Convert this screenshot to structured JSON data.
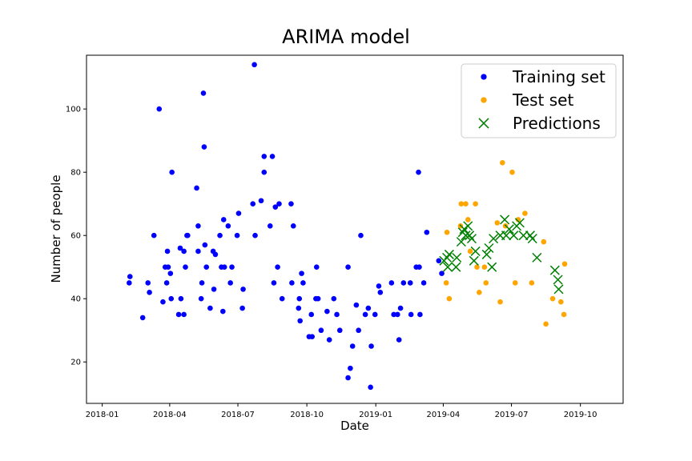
{
  "chart_data": {
    "type": "scatter",
    "title": "ARIMA model",
    "xlabel": "Date",
    "ylabel": "Number of people",
    "xlim": [
      "2017-12-11",
      "2019-11-27"
    ],
    "ylim": [
      6.9,
      117
    ],
    "x_ticks": [
      "2018-01-01",
      "2018-04-01",
      "2018-07-01",
      "2018-10-01",
      "2019-01-01",
      "2019-04-01",
      "2019-07-01",
      "2019-10-01"
    ],
    "x_tick_labels": [
      "2018-01",
      "2018-04",
      "2018-07",
      "2018-10",
      "2019-01",
      "2019-04",
      "2019-07",
      "2019-10"
    ],
    "y_ticks": [
      20,
      40,
      60,
      80,
      100
    ],
    "grid": false,
    "legend_position": "top-right",
    "series": [
      {
        "name": "Training set",
        "color": "#0000ff",
        "marker": "circle",
        "points": [
          [
            "2018-02-06",
            45
          ],
          [
            "2018-02-07",
            47
          ],
          [
            "2018-02-24",
            34
          ],
          [
            "2018-03-03",
            45
          ],
          [
            "2018-03-05",
            42
          ],
          [
            "2018-03-11",
            60
          ],
          [
            "2018-03-18",
            100
          ],
          [
            "2018-03-23",
            39
          ],
          [
            "2018-03-26",
            50
          ],
          [
            "2018-03-28",
            45
          ],
          [
            "2018-03-29",
            55
          ],
          [
            "2018-03-30",
            50
          ],
          [
            "2018-04-02",
            48
          ],
          [
            "2018-04-03",
            40
          ],
          [
            "2018-04-04",
            80
          ],
          [
            "2018-04-13",
            35
          ],
          [
            "2018-04-15",
            56
          ],
          [
            "2018-04-16",
            40
          ],
          [
            "2018-04-20",
            35
          ],
          [
            "2018-04-20",
            55
          ],
          [
            "2018-04-22",
            50
          ],
          [
            "2018-04-24",
            60
          ],
          [
            "2018-04-25",
            60
          ],
          [
            "2018-05-07",
            75
          ],
          [
            "2018-05-09",
            63
          ],
          [
            "2018-05-09",
            55
          ],
          [
            "2018-05-13",
            40
          ],
          [
            "2018-05-14",
            45
          ],
          [
            "2018-05-16",
            105
          ],
          [
            "2018-05-17",
            88
          ],
          [
            "2018-05-18",
            57
          ],
          [
            "2018-05-20",
            50
          ],
          [
            "2018-05-25",
            37
          ],
          [
            "2018-05-29",
            55
          ],
          [
            "2018-05-30",
            43
          ],
          [
            "2018-06-01",
            54
          ],
          [
            "2018-06-07",
            60
          ],
          [
            "2018-06-09",
            50
          ],
          [
            "2018-06-11",
            36
          ],
          [
            "2018-06-12",
            65
          ],
          [
            "2018-06-13",
            50
          ],
          [
            "2018-06-18",
            63
          ],
          [
            "2018-06-21",
            45
          ],
          [
            "2018-06-23",
            50
          ],
          [
            "2018-06-30",
            60
          ],
          [
            "2018-07-02",
            67
          ],
          [
            "2018-07-07",
            37
          ],
          [
            "2018-07-08",
            43
          ],
          [
            "2018-07-21",
            70
          ],
          [
            "2018-07-23",
            114
          ],
          [
            "2018-07-24",
            60
          ],
          [
            "2018-08-01",
            71
          ],
          [
            "2018-08-05",
            80
          ],
          [
            "2018-08-05",
            85
          ],
          [
            "2018-08-13",
            63
          ],
          [
            "2018-08-16",
            85
          ],
          [
            "2018-08-18",
            45
          ],
          [
            "2018-08-20",
            69
          ],
          [
            "2018-08-23",
            50
          ],
          [
            "2018-08-25",
            70
          ],
          [
            "2018-08-29",
            40
          ],
          [
            "2018-09-10",
            70
          ],
          [
            "2018-09-11",
            45
          ],
          [
            "2018-09-13",
            63
          ],
          [
            "2018-09-20",
            37
          ],
          [
            "2018-09-21",
            40
          ],
          [
            "2018-09-22",
            33
          ],
          [
            "2018-09-24",
            48
          ],
          [
            "2018-09-26",
            45
          ],
          [
            "2018-10-04",
            28
          ],
          [
            "2018-10-07",
            35
          ],
          [
            "2018-10-08",
            28
          ],
          [
            "2018-10-13",
            40
          ],
          [
            "2018-10-14",
            50
          ],
          [
            "2018-10-16",
            40
          ],
          [
            "2018-10-20",
            30
          ],
          [
            "2018-10-28",
            36
          ],
          [
            "2018-10-31",
            27
          ],
          [
            "2018-11-06",
            40
          ],
          [
            "2018-11-10",
            35
          ],
          [
            "2018-11-14",
            30
          ],
          [
            "2018-11-25",
            15
          ],
          [
            "2018-11-25",
            50
          ],
          [
            "2018-11-28",
            18
          ],
          [
            "2018-12-01",
            25
          ],
          [
            "2018-12-06",
            38
          ],
          [
            "2018-12-09",
            30
          ],
          [
            "2018-12-12",
            60
          ],
          [
            "2018-12-18",
            35
          ],
          [
            "2018-12-22",
            37
          ],
          [
            "2018-12-25",
            12
          ],
          [
            "2018-12-26",
            25
          ],
          [
            "2018-12-31",
            35
          ],
          [
            "2019-01-05",
            44
          ],
          [
            "2019-01-07",
            42
          ],
          [
            "2019-01-22",
            45
          ],
          [
            "2019-01-25",
            35
          ],
          [
            "2019-01-30",
            35
          ],
          [
            "2019-02-01",
            27
          ],
          [
            "2019-02-03",
            37
          ],
          [
            "2019-02-07",
            45
          ],
          [
            "2019-02-16",
            45
          ],
          [
            "2019-02-17",
            35
          ],
          [
            "2019-02-24",
            50
          ],
          [
            "2019-02-27",
            80
          ],
          [
            "2019-02-28",
            50
          ],
          [
            "2019-03-01",
            35
          ],
          [
            "2019-03-06",
            45
          ],
          [
            "2019-03-10",
            61
          ],
          [
            "2019-03-26",
            52
          ],
          [
            "2019-03-30",
            48
          ]
        ]
      },
      {
        "name": "Test set",
        "color": "#ffa500",
        "marker": "circle",
        "points": [
          [
            "2019-04-05",
            45
          ],
          [
            "2019-04-06",
            61
          ],
          [
            "2019-04-09",
            40
          ],
          [
            "2019-04-24",
            63
          ],
          [
            "2019-04-25",
            70
          ],
          [
            "2019-05-01",
            70
          ],
          [
            "2019-05-04",
            65
          ],
          [
            "2019-05-07",
            55
          ],
          [
            "2019-05-14",
            70
          ],
          [
            "2019-05-16",
            50
          ],
          [
            "2019-05-19",
            42
          ],
          [
            "2019-05-26",
            50
          ],
          [
            "2019-05-28",
            45
          ],
          [
            "2019-06-12",
            64
          ],
          [
            "2019-06-16",
            39
          ],
          [
            "2019-06-19",
            83
          ],
          [
            "2019-06-23",
            63
          ],
          [
            "2019-07-02",
            80
          ],
          [
            "2019-07-06",
            45
          ],
          [
            "2019-07-10",
            65
          ],
          [
            "2019-07-19",
            67
          ],
          [
            "2019-07-28",
            45
          ],
          [
            "2019-08-13",
            58
          ],
          [
            "2019-08-16",
            32
          ],
          [
            "2019-08-25",
            40
          ],
          [
            "2019-09-05",
            39
          ],
          [
            "2019-09-09",
            35
          ],
          [
            "2019-09-10",
            51
          ]
        ]
      },
      {
        "name": "Predictions",
        "color": "#008000",
        "marker": "x",
        "points": [
          [
            "2019-04-02",
            52
          ],
          [
            "2019-04-06",
            53
          ],
          [
            "2019-04-07",
            50
          ],
          [
            "2019-04-09",
            54
          ],
          [
            "2019-04-18",
            50
          ],
          [
            "2019-04-19",
            53
          ],
          [
            "2019-04-25",
            58
          ],
          [
            "2019-04-27",
            61
          ],
          [
            "2019-04-29",
            62
          ],
          [
            "2019-05-01",
            60
          ],
          [
            "2019-05-04",
            63
          ],
          [
            "2019-05-06",
            60
          ],
          [
            "2019-05-09",
            59
          ],
          [
            "2019-05-12",
            52
          ],
          [
            "2019-05-14",
            55
          ],
          [
            "2019-05-29",
            54
          ],
          [
            "2019-06-01",
            56
          ],
          [
            "2019-06-05",
            50
          ],
          [
            "2019-06-07",
            59
          ],
          [
            "2019-06-16",
            60
          ],
          [
            "2019-06-22",
            65
          ],
          [
            "2019-06-24",
            60
          ],
          [
            "2019-06-28",
            62
          ],
          [
            "2019-07-04",
            60
          ],
          [
            "2019-07-08",
            63
          ],
          [
            "2019-07-12",
            64
          ],
          [
            "2019-07-17",
            60
          ],
          [
            "2019-07-26",
            60
          ],
          [
            "2019-07-29",
            59
          ],
          [
            "2019-08-04",
            53
          ],
          [
            "2019-08-28",
            49
          ],
          [
            "2019-09-01",
            46
          ],
          [
            "2019-09-02",
            43
          ]
        ]
      }
    ]
  }
}
